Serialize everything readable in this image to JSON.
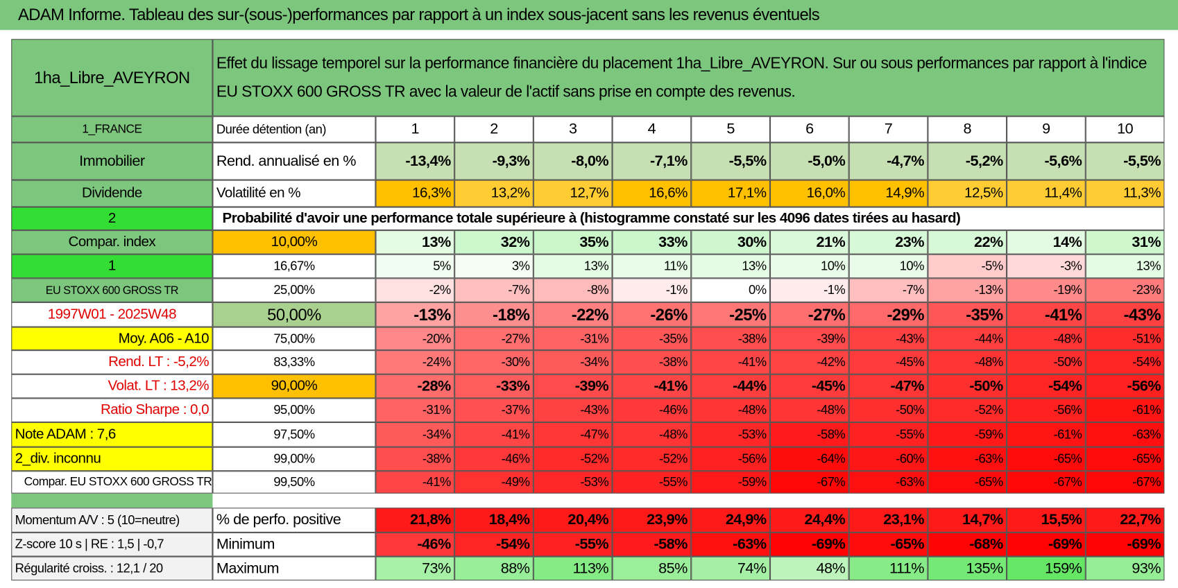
{
  "title": "ADAM Informe. Tableau des sur-(sous-)performances par rapport à un index sous-jacent sans les revenus éventuels",
  "fund": "1ha_Libre_AVEYRON",
  "description": "Effet du lissage temporel sur la performance financière du placement 1ha_Libre_AVEYRON. Sur ou sous performances par rapport à l'indice EU STOXX 600 GROSS TR avec la valeur de l'actif sans prise en compte des revenus.",
  "rows": [
    {
      "side": "1_FRANCE",
      "label": "Durée détention (an)",
      "values": [
        1,
        2,
        3,
        4,
        5,
        6,
        7,
        8,
        9,
        10
      ]
    },
    {
      "side": "Immobilier",
      "label": "Rend. annualisé en %",
      "values": [
        "-13,4%",
        "-9,3%",
        "-8,0%",
        "-7,1%",
        "-5,5%",
        "-5,0%",
        "-4,7%",
        "-5,2%",
        "-5,6%",
        "-5,5%"
      ]
    },
    {
      "side": "Dividende",
      "label": "Volatilité en %",
      "values": [
        "16,3%",
        "13,2%",
        "12,7%",
        "16,6%",
        "17,1%",
        "16,0%",
        "14,9%",
        "12,5%",
        "11,4%",
        "11,3%"
      ]
    },
    {
      "side": "2",
      "label": "Probabilité d'avoir une performance totale supérieure à (histogramme constaté sur les 4096 dates tirées au hasard)"
    },
    {
      "side": "Compar. index",
      "label": "10,00%",
      "values": [
        "13%",
        "32%",
        "35%",
        "33%",
        "30%",
        "21%",
        "23%",
        "22%",
        "14%",
        "31%"
      ]
    },
    {
      "side": "1",
      "label": "16,67%",
      "values": [
        "5%",
        "3%",
        "13%",
        "11%",
        "13%",
        "10%",
        "10%",
        "-5%",
        "-3%",
        "13%"
      ]
    },
    {
      "side": "EU STOXX 600 GROSS TR",
      "label": "25,00%",
      "values": [
        "-2%",
        "-7%",
        "-8%",
        "-1%",
        "0%",
        "-1%",
        "-7%",
        "-13%",
        "-19%",
        "-23%"
      ]
    },
    {
      "side": "1997W01 - 2025W48",
      "label": "50,00%",
      "values": [
        "-13%",
        "-18%",
        "-22%",
        "-26%",
        "-25%",
        "-27%",
        "-29%",
        "-35%",
        "-41%",
        "-43%"
      ]
    },
    {
      "side": "Moy. A06 - A10",
      "label": "75,00%",
      "values": [
        "-20%",
        "-27%",
        "-31%",
        "-35%",
        "-38%",
        "-39%",
        "-43%",
        "-44%",
        "-48%",
        "-51%"
      ]
    },
    {
      "side": "Rend. LT :   -5,2%",
      "label": "83,33%",
      "values": [
        "-24%",
        "-30%",
        "-34%",
        "-38%",
        "-41%",
        "-42%",
        "-45%",
        "-48%",
        "-50%",
        "-54%"
      ]
    },
    {
      "side": "Volat. LT :   13,2%",
      "label": "90,00%",
      "values": [
        "-28%",
        "-33%",
        "-39%",
        "-41%",
        "-44%",
        "-45%",
        "-47%",
        "-50%",
        "-54%",
        "-56%"
      ]
    },
    {
      "side": "Ratio Sharpe :    0,0",
      "label": "95,00%",
      "values": [
        "-31%",
        "-37%",
        "-43%",
        "-46%",
        "-48%",
        "-48%",
        "-50%",
        "-52%",
        "-56%",
        "-61%"
      ]
    },
    {
      "side": "Note ADAM : 7,6",
      "label": "97,50%",
      "values": [
        "-34%",
        "-41%",
        "-47%",
        "-48%",
        "-53%",
        "-58%",
        "-55%",
        "-59%",
        "-61%",
        "-63%"
      ]
    },
    {
      "side": "2_div. inconnu",
      "label": "99,00%",
      "values": [
        "-38%",
        "-46%",
        "-52%",
        "-52%",
        "-56%",
        "-64%",
        "-60%",
        "-63%",
        "-65%",
        "-65%"
      ]
    },
    {
      "side": "Compar. EU STOXX 600 GROSS TR",
      "label": "99,50%",
      "values": [
        "-41%",
        "-49%",
        "-53%",
        "-55%",
        "-59%",
        "-67%",
        "-63%",
        "-65%",
        "-67%",
        "-67%"
      ]
    },
    {
      "side": "Momentum A/V : 5 (10=neutre)",
      "label": "% de perfo. positive",
      "values": [
        "21,8%",
        "18,4%",
        "20,4%",
        "23,9%",
        "24,9%",
        "24,4%",
        "23,1%",
        "14,7%",
        "15,5%",
        "22,7%"
      ]
    },
    {
      "side": "Z-score 10 s | RE : 1,5 | -0,7",
      "label": "Minimum",
      "values": [
        "-46%",
        "-54%",
        "-55%",
        "-58%",
        "-63%",
        "-69%",
        "-65%",
        "-68%",
        "-69%",
        "-69%"
      ]
    },
    {
      "side": "Régularité croiss. : 12,1 / 20",
      "label": "Maximum",
      "values": [
        "73%",
        "88%",
        "113%",
        "85%",
        "74%",
        "48%",
        "111%",
        "135%",
        "159%",
        "93%"
      ]
    }
  ]
}
